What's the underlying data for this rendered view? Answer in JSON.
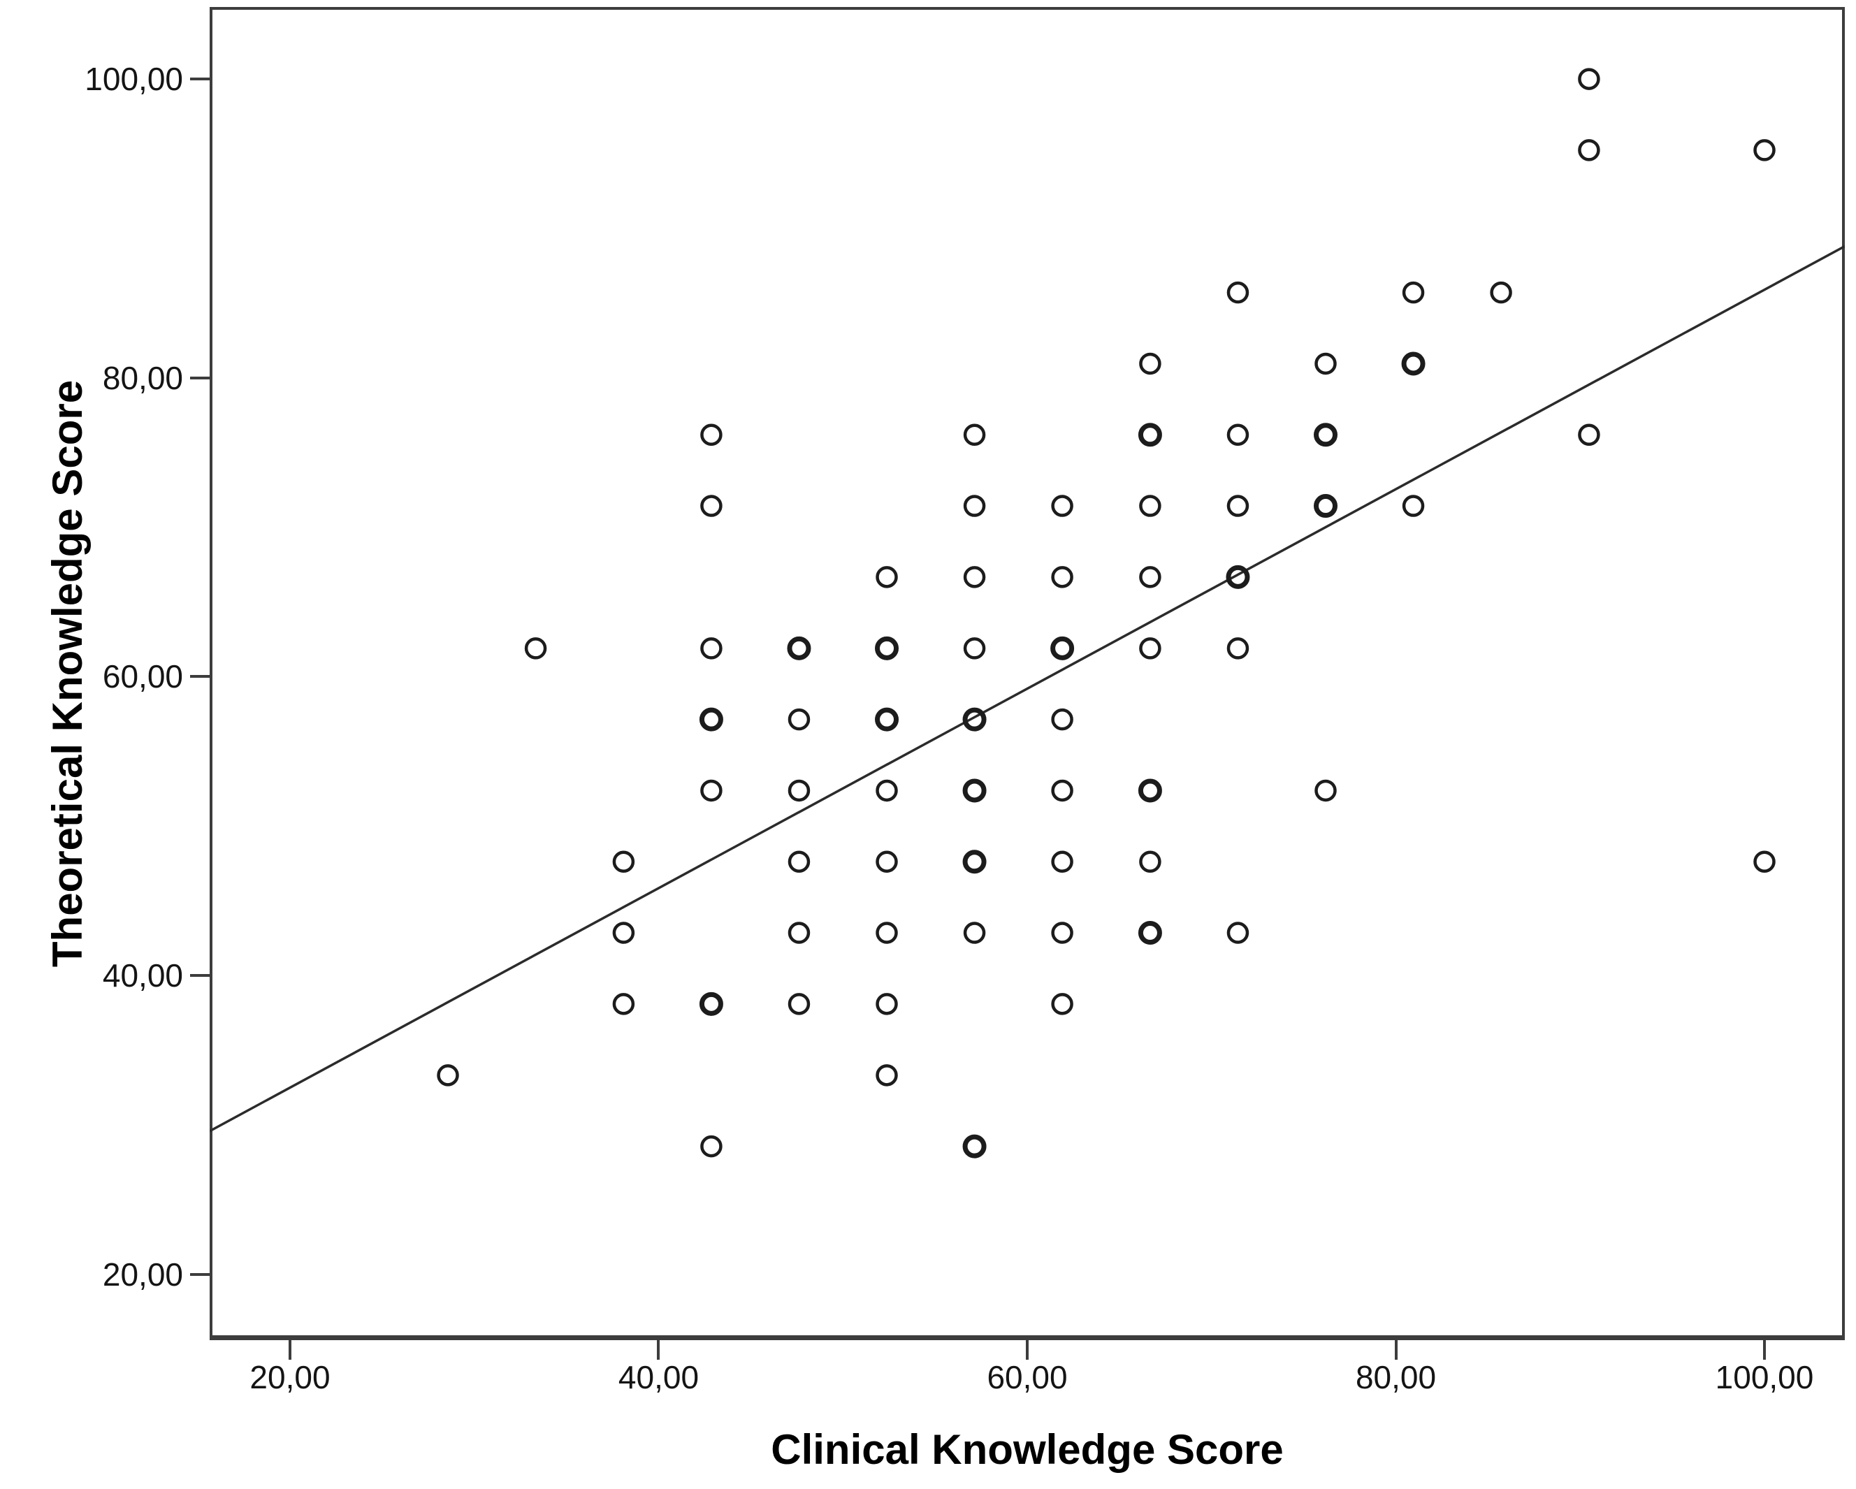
{
  "figure": {
    "background": "#ffffff",
    "axis_color": "#3d3d3d",
    "marker_color": "#1c1c1c",
    "line_color": "#2b2b2b"
  },
  "chart_data": {
    "type": "scatter",
    "title": "",
    "xlabel": "Clinical Knowledge Score",
    "ylabel": "Theoretical Knowledge Score",
    "xlim": [
      15.64,
      104.36
    ],
    "ylim": [
      15.6,
      104.82
    ],
    "grid": false,
    "legend": false,
    "x_ticks": [
      {
        "value": 20,
        "label": "20,00"
      },
      {
        "value": 40,
        "label": "40,00"
      },
      {
        "value": 60,
        "label": "60,00"
      },
      {
        "value": 80,
        "label": "80,00"
      },
      {
        "value": 100,
        "label": "100,00"
      }
    ],
    "y_ticks": [
      {
        "value": 20,
        "label": "20,00"
      },
      {
        "value": 40,
        "label": "40,00"
      },
      {
        "value": 60,
        "label": "60,00"
      },
      {
        "value": 80,
        "label": "80,00"
      },
      {
        "value": 100,
        "label": "100,00"
      }
    ],
    "point_format": "[clinical_x, theoretical_y, marker_weight] — weight 2 = heavier ring (overlapping cases)",
    "points": [
      [
        90.48,
        100.0,
        1
      ],
      [
        90.48,
        95.24,
        1
      ],
      [
        100.0,
        95.24,
        1
      ],
      [
        71.43,
        85.71,
        1
      ],
      [
        80.95,
        85.71,
        1
      ],
      [
        85.71,
        85.71,
        1
      ],
      [
        66.67,
        80.95,
        1
      ],
      [
        76.19,
        80.95,
        1
      ],
      [
        80.95,
        80.95,
        2
      ],
      [
        42.86,
        76.19,
        1
      ],
      [
        57.14,
        76.19,
        1
      ],
      [
        66.67,
        76.19,
        2
      ],
      [
        71.43,
        76.19,
        1
      ],
      [
        76.19,
        76.19,
        2
      ],
      [
        90.48,
        76.19,
        1
      ],
      [
        42.86,
        71.43,
        1
      ],
      [
        57.14,
        71.43,
        1
      ],
      [
        61.9,
        71.43,
        1
      ],
      [
        66.67,
        71.43,
        1
      ],
      [
        71.43,
        71.43,
        1
      ],
      [
        76.19,
        71.43,
        2
      ],
      [
        80.95,
        71.43,
        1
      ],
      [
        52.38,
        66.67,
        1
      ],
      [
        57.14,
        66.67,
        1
      ],
      [
        61.9,
        66.67,
        1
      ],
      [
        66.67,
        66.67,
        1
      ],
      [
        71.43,
        66.67,
        2
      ],
      [
        33.33,
        61.9,
        1
      ],
      [
        42.86,
        61.9,
        1
      ],
      [
        47.62,
        61.9,
        2
      ],
      [
        52.38,
        61.9,
        2
      ],
      [
        57.14,
        61.9,
        1
      ],
      [
        61.9,
        61.9,
        2
      ],
      [
        66.67,
        61.9,
        1
      ],
      [
        71.43,
        61.9,
        1
      ],
      [
        42.86,
        57.14,
        2
      ],
      [
        47.62,
        57.14,
        1
      ],
      [
        52.38,
        57.14,
        2
      ],
      [
        57.14,
        57.14,
        2
      ],
      [
        61.9,
        57.14,
        1
      ],
      [
        42.86,
        52.38,
        1
      ],
      [
        47.62,
        52.38,
        1
      ],
      [
        52.38,
        52.38,
        1
      ],
      [
        57.14,
        52.38,
        2
      ],
      [
        61.9,
        52.38,
        1
      ],
      [
        66.67,
        52.38,
        2
      ],
      [
        76.19,
        52.38,
        1
      ],
      [
        38.1,
        47.62,
        1
      ],
      [
        47.62,
        47.62,
        1
      ],
      [
        52.38,
        47.62,
        1
      ],
      [
        57.14,
        47.62,
        2
      ],
      [
        61.9,
        47.62,
        1
      ],
      [
        66.67,
        47.62,
        1
      ],
      [
        100.0,
        47.62,
        1
      ],
      [
        38.1,
        42.86,
        1
      ],
      [
        47.62,
        42.86,
        1
      ],
      [
        52.38,
        42.86,
        1
      ],
      [
        57.14,
        42.86,
        1
      ],
      [
        61.9,
        42.86,
        1
      ],
      [
        66.67,
        42.86,
        2
      ],
      [
        71.43,
        42.86,
        1
      ],
      [
        38.1,
        38.1,
        1
      ],
      [
        42.86,
        38.1,
        2
      ],
      [
        47.62,
        38.1,
        1
      ],
      [
        52.38,
        38.1,
        1
      ],
      [
        61.9,
        38.1,
        1
      ],
      [
        28.57,
        33.33,
        1
      ],
      [
        52.38,
        33.33,
        1
      ],
      [
        42.86,
        28.57,
        1
      ],
      [
        57.14,
        28.57,
        2
      ]
    ],
    "fit_line": {
      "slope": 0.6675,
      "intercept": 19.15,
      "x_start": 15.64,
      "x_end": 104.36
    }
  }
}
